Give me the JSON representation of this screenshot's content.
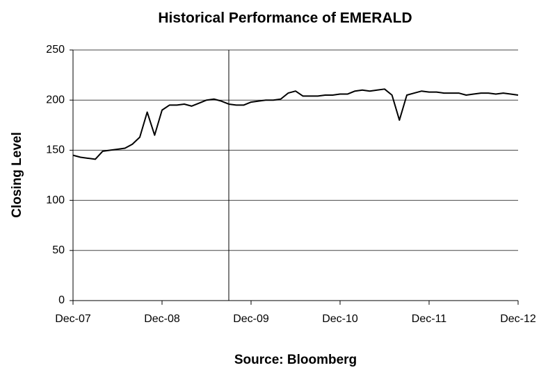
{
  "chart_data": {
    "type": "line",
    "title": "Historical Performance of EMERALD",
    "ylabel": "Closing Level",
    "source": "Source: Bloomberg",
    "x": [
      "Dec-07",
      "Jan-08",
      "Feb-08",
      "Mar-08",
      "Apr-08",
      "May-08",
      "Jun-08",
      "Jul-08",
      "Aug-08",
      "Sep-08",
      "Oct-08",
      "Nov-08",
      "Dec-08",
      "Jan-09",
      "Feb-09",
      "Mar-09",
      "Apr-09",
      "May-09",
      "Jun-09",
      "Jul-09",
      "Aug-09",
      "Sep-09",
      "Oct-09",
      "Nov-09",
      "Dec-09",
      "Jan-10",
      "Feb-10",
      "Mar-10",
      "Apr-10",
      "May-10",
      "Jun-10",
      "Jul-10",
      "Aug-10",
      "Sep-10",
      "Oct-10",
      "Nov-10",
      "Dec-10",
      "Jan-11",
      "Feb-11",
      "Mar-11",
      "Apr-11",
      "May-11",
      "Jun-11",
      "Jul-11",
      "Aug-11",
      "Sep-11",
      "Oct-11",
      "Nov-11",
      "Dec-11",
      "Jan-12",
      "Feb-12",
      "Mar-12",
      "Apr-12",
      "May-12",
      "Jun-12",
      "Jul-12",
      "Aug-12",
      "Sep-12",
      "Oct-12",
      "Nov-12",
      "Dec-12"
    ],
    "series": [
      {
        "name": "EMERALD",
        "color": "#000000",
        "values": [
          145,
          143,
          142,
          141,
          149,
          150,
          151,
          152,
          156,
          163,
          188,
          165,
          190,
          195,
          195,
          196,
          194,
          197,
          200,
          201,
          199,
          196,
          195,
          195,
          198,
          199,
          200,
          200,
          201,
          207,
          209,
          204,
          204,
          204,
          205,
          205,
          206,
          206,
          209,
          210,
          209,
          210,
          211,
          205,
          180,
          205,
          207,
          209,
          208,
          208,
          207,
          207,
          207,
          205,
          206,
          207,
          207,
          206,
          207,
          206,
          205
        ]
      }
    ],
    "xticks": [
      "Dec-07",
      "Dec-08",
      "Dec-09",
      "Dec-10",
      "Dec-11",
      "Dec-12"
    ],
    "vline": "Sep-09",
    "ylim": [
      0,
      250
    ],
    "yticks": [
      0,
      50,
      100,
      150,
      200,
      250
    ],
    "grid": true
  }
}
